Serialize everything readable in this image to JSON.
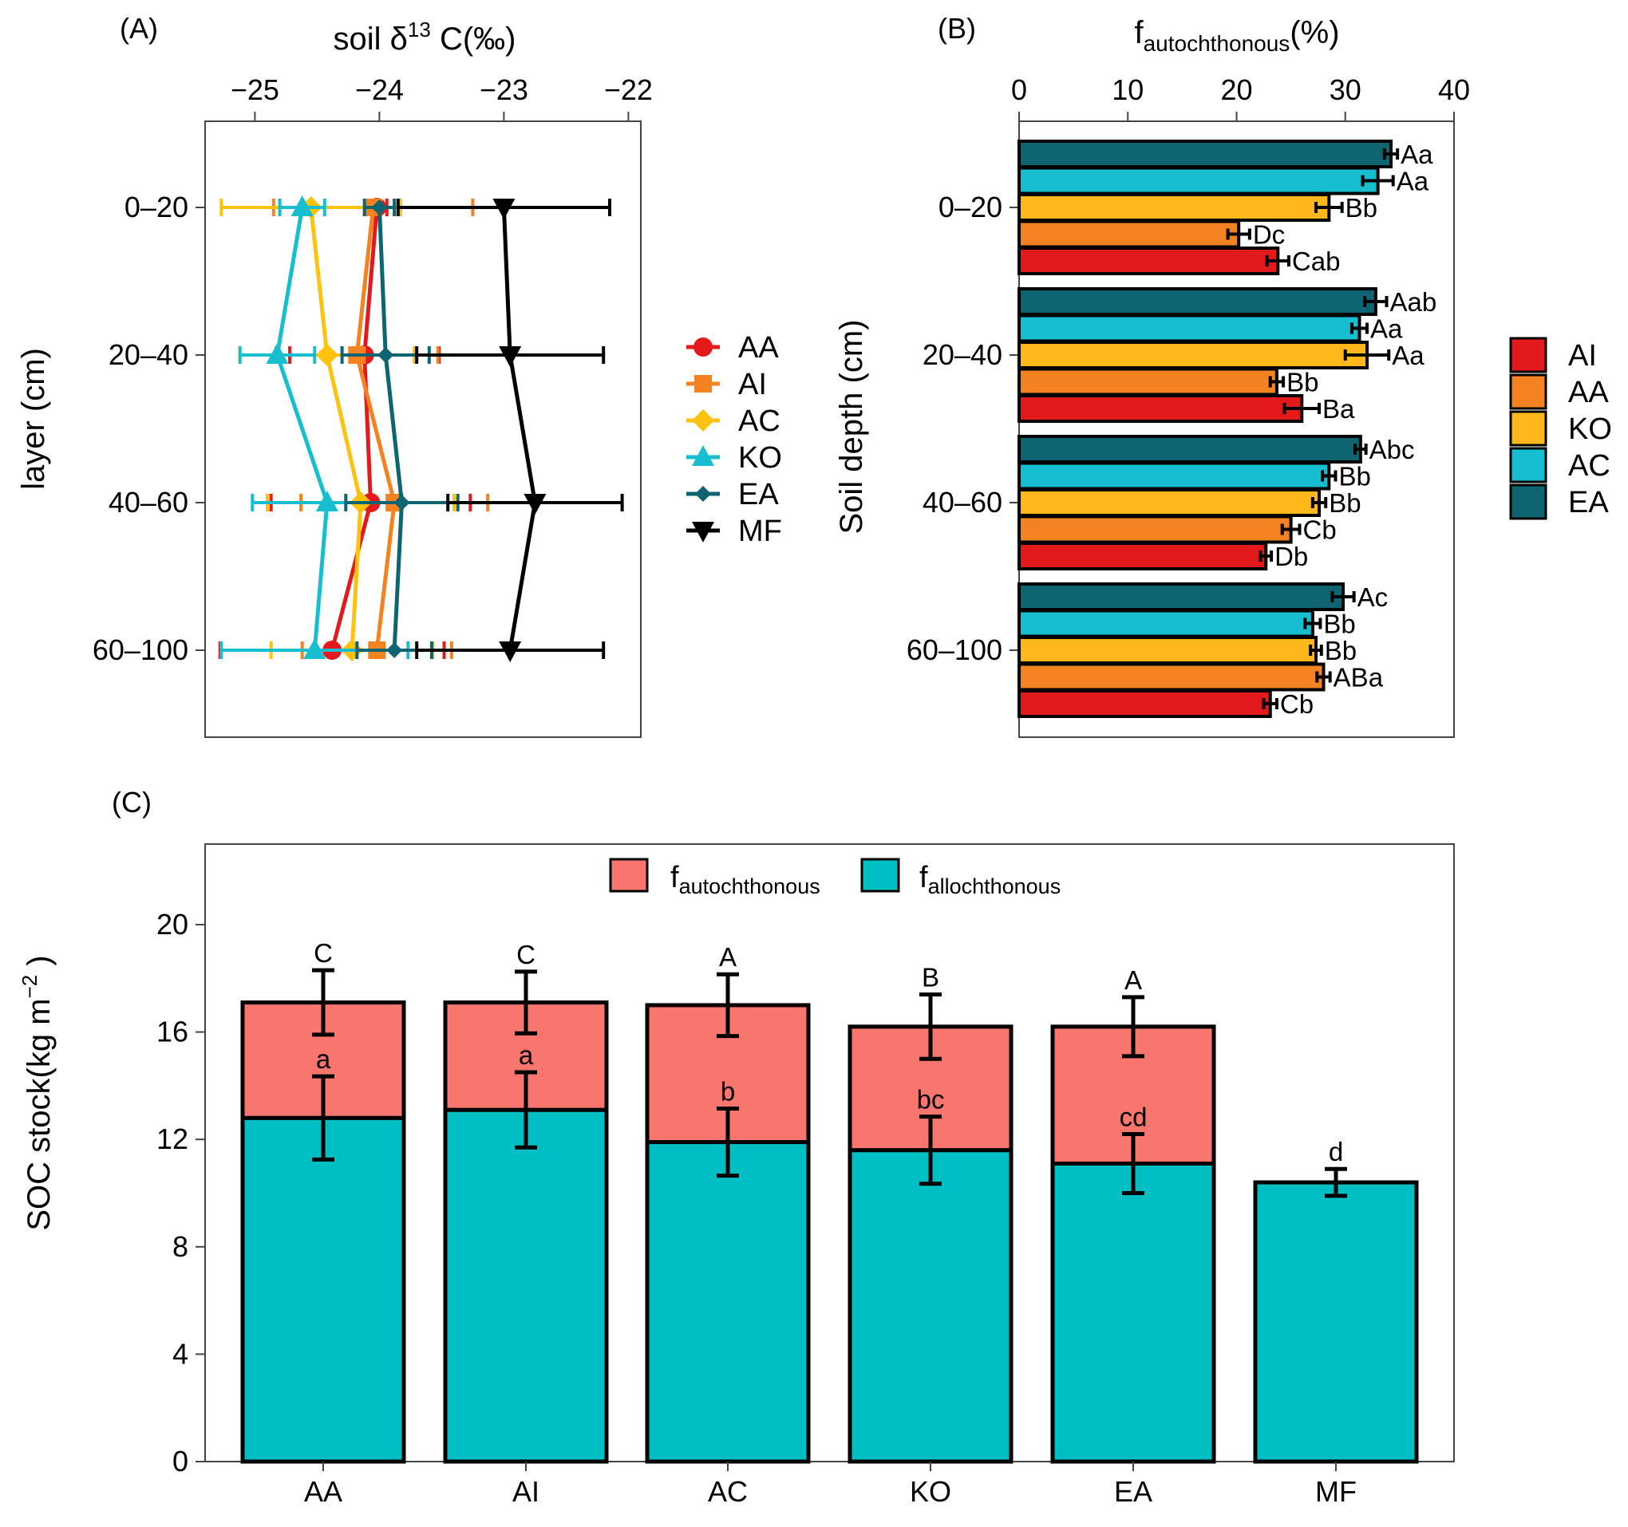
{
  "chart_data": [
    {
      "panel": "A",
      "panel_label": "(A)",
      "type": "line",
      "title": "",
      "xlabel_parts": [
        "soil δ",
        "13",
        " C(‰)"
      ],
      "ylabel": "layer (cm)",
      "xlim": [
        -25.4,
        -21.9
      ],
      "xticks": [
        -25,
        -24,
        -23,
        -22
      ],
      "xtick_labels": [
        "−25",
        "−24",
        "−23",
        "−22"
      ],
      "layers": [
        "0–20",
        "20–40",
        "40–60",
        "60–100"
      ],
      "series": [
        {
          "name": "AA",
          "marker": "circle",
          "color": "#E31A1C",
          "values": [
            -24.02,
            -24.12,
            -24.07,
            -24.38
          ],
          "errors": [
            0.08,
            0.6,
            0.8,
            0.9
          ]
        },
        {
          "name": "AI",
          "marker": "square",
          "color": "#F58220",
          "values": [
            -24.05,
            -24.18,
            -23.88,
            -24.02
          ],
          "errors": [
            0.8,
            0.65,
            0.75,
            0.6
          ]
        },
        {
          "name": "AC",
          "marker": "diamond",
          "color": "#FFC20E",
          "values": [
            -24.55,
            -24.42,
            -24.15,
            -24.22
          ],
          "errors": [
            0.72,
            0.7,
            0.75,
            0.65
          ]
        },
        {
          "name": "KO",
          "marker": "triangle-up",
          "color": "#17BECF",
          "values": [
            -24.62,
            -24.82,
            -24.42,
            -24.52
          ],
          "errors": [
            0.18,
            0.3,
            0.6,
            0.75
          ]
        },
        {
          "name": "EA",
          "marker": "diamond-small",
          "color": "#0E6471",
          "values": [
            -24.0,
            -23.95,
            -23.82,
            -23.88
          ],
          "errors": [
            0.12,
            0.35,
            0.45,
            0.3
          ]
        },
        {
          "name": "MF",
          "marker": "triangle-down",
          "color": "#000000",
          "values": [
            -23.0,
            -22.95,
            -22.75,
            -22.95
          ],
          "errors": [
            0.85,
            0.75,
            0.7,
            0.75
          ]
        }
      ]
    },
    {
      "panel": "B",
      "panel_label": "(B)",
      "type": "bar",
      "orientation": "horizontal",
      "xlabel_main": "f",
      "xlabel_sub": "autochthonous",
      "xlabel_tail": "(%)",
      "ylabel": "Soil depth (cm)",
      "xlim": [
        0,
        40
      ],
      "xticks": [
        0,
        10,
        20,
        30,
        40
      ],
      "layers": [
        "0–20",
        "20–40",
        "40–60",
        "60–100"
      ],
      "series_order_top_to_bottom": [
        "EA",
        "AC",
        "KO",
        "AA",
        "AI"
      ],
      "legend_order": [
        "AI",
        "AA",
        "KO",
        "AC",
        "EA"
      ],
      "colors": {
        "AI": "#E31A1C",
        "AA": "#F58220",
        "KO": "#FFB81C",
        "AC": "#17BECF",
        "EA": "#0E6471"
      },
      "values": {
        "EA": [
          34.2,
          32.8,
          31.4,
          29.8
        ],
        "AC": [
          33.0,
          31.3,
          28.5,
          27.0
        ],
        "KO": [
          28.5,
          32.0,
          27.6,
          27.3
        ],
        "AA": [
          20.2,
          23.7,
          25.0,
          28.0
        ],
        "AI": [
          23.8,
          26.0,
          22.7,
          23.1
        ]
      },
      "errors": {
        "EA": [
          0.6,
          1.0,
          0.5,
          1.0
        ],
        "AC": [
          1.4,
          0.7,
          0.6,
          0.7
        ],
        "KO": [
          1.2,
          2.0,
          0.6,
          0.5
        ],
        "AA": [
          1.0,
          0.6,
          0.8,
          0.6
        ],
        "AI": [
          1.0,
          1.6,
          0.5,
          0.6
        ]
      },
      "labels": {
        "EA": [
          "Aa",
          "Aab",
          "Abc",
          "Ac"
        ],
        "AC": [
          "Aa",
          "Aa",
          "Bb",
          "Bb"
        ],
        "KO": [
          "Bb",
          "Aa",
          "Bb",
          "Bb"
        ],
        "AA": [
          "Dc",
          "Bb",
          "Cb",
          "ABa"
        ],
        "AI": [
          "Cab",
          "Ba",
          "Db",
          "Cb"
        ]
      }
    },
    {
      "panel": "C",
      "panel_label": "(C)",
      "type": "bar",
      "stacked": true,
      "ylabel_main": "SOC stock(kg m",
      "ylabel_sup": "−2",
      "ylabel_tail": " )",
      "ylim": [
        0,
        23
      ],
      "yticks": [
        0,
        4,
        8,
        12,
        16,
        20
      ],
      "categories": [
        "AA",
        "AI",
        "AC",
        "KO",
        "EA",
        "MF"
      ],
      "series": [
        {
          "name": "allochthonous",
          "legend_main": "f",
          "legend_sub": "allochthonous",
          "color": "#00BFC4",
          "values": [
            12.8,
            13.1,
            11.9,
            11.6,
            11.1,
            10.4
          ],
          "errors": [
            1.55,
            1.4,
            1.25,
            1.25,
            1.1,
            0.5
          ],
          "letters": [
            "a",
            "a",
            "b",
            "bc",
            "cd",
            "d"
          ]
        },
        {
          "name": "autochthonous",
          "legend_main": "f",
          "legend_sub": "autochthonous",
          "color": "#F8766D",
          "totals": [
            17.1,
            17.1,
            17.0,
            16.2,
            16.2,
            10.4
          ],
          "errors": [
            1.2,
            1.15,
            1.15,
            1.2,
            1.1,
            0
          ],
          "letters": [
            "C",
            "C",
            "A",
            "B",
            "A",
            ""
          ]
        }
      ]
    }
  ]
}
